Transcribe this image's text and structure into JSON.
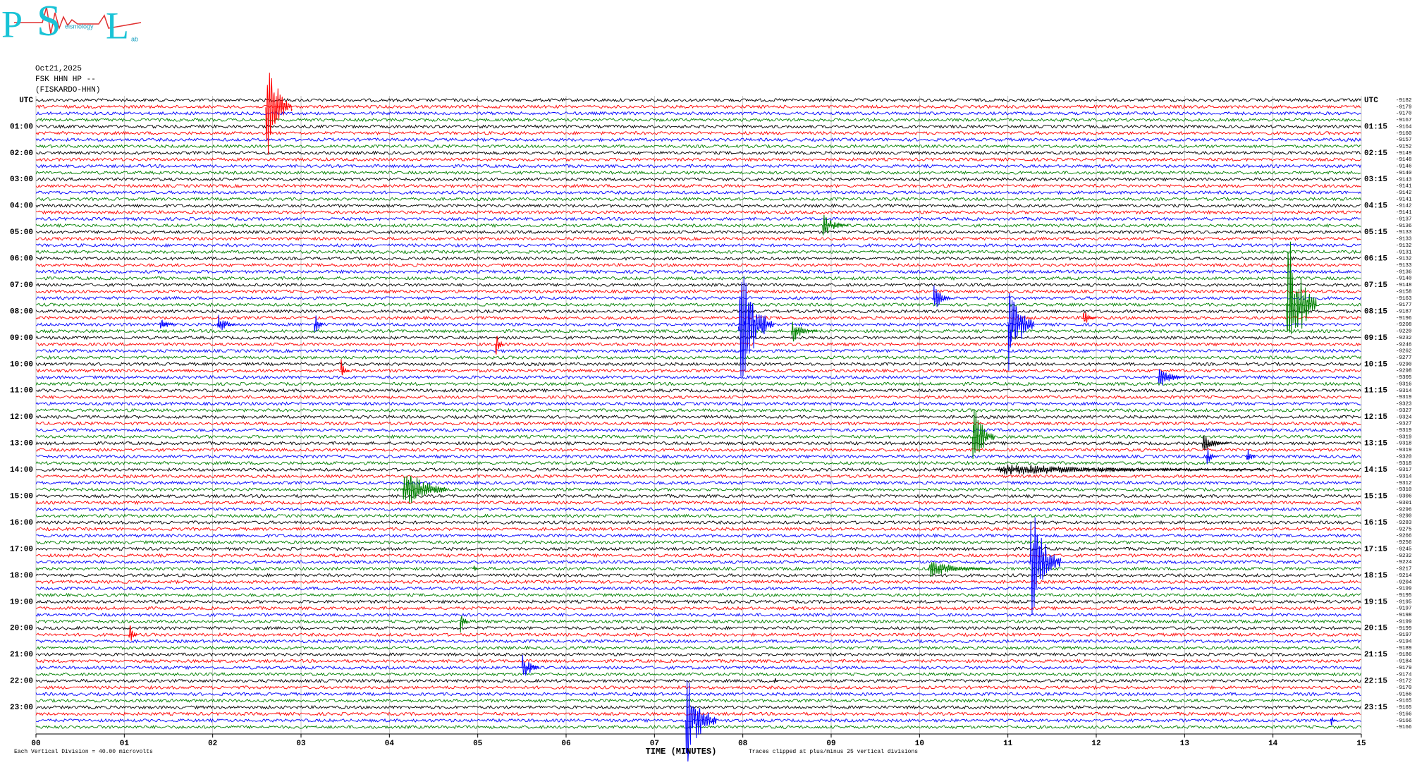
{
  "chart_data": {
    "type": "seismogram",
    "logo_letters": [
      "P",
      "S",
      "L"
    ],
    "logo_small": [
      "eismology",
      "ab"
    ],
    "date": "Oct21,2025",
    "station": "FSK HHN HP --",
    "station_name": "(FISKARDO-HHN)",
    "left_labels": [
      "UTC",
      "01:00",
      "02:00",
      "03:00",
      "04:00",
      "05:00",
      "06:00",
      "07:00",
      "08:00",
      "09:00",
      "10:00",
      "11:00",
      "12:00",
      "13:00",
      "14:00",
      "15:00",
      "16:00",
      "17:00",
      "18:00",
      "19:00",
      "20:00",
      "21:00",
      "22:00",
      "23:00"
    ],
    "right_labels": [
      "UTC",
      "01:15",
      "02:15",
      "03:15",
      "04:15",
      "05:15",
      "06:15",
      "07:15",
      "08:15",
      "09:15",
      "10:15",
      "11:15",
      "12:15",
      "13:15",
      "14:15",
      "15:15",
      "16:15",
      "17:15",
      "18:15",
      "19:15",
      "20:15",
      "21:15",
      "22:15",
      "23:15"
    ],
    "offsets": [
      -9182,
      -9179,
      -9170,
      -9167,
      -9164,
      -9160,
      -9157,
      -9152,
      -9149,
      -9148,
      -9146,
      -9140,
      -9143,
      -9141,
      -9142,
      -9141,
      -9142,
      -9141,
      -9137,
      -9136,
      -9133,
      -9133,
      -9132,
      -9131,
      -9132,
      -9133,
      -9136,
      -9140,
      -9148,
      -9158,
      -9163,
      -9177,
      -9187,
      -9196,
      -9208,
      -9220,
      -9232,
      -9246,
      -9262,
      -9277,
      -9290,
      -9298,
      -9305,
      -9316,
      -9314,
      -9319,
      -9323,
      -9327,
      -9324,
      -9327,
      -9319,
      -9319,
      -9318,
      -9319,
      -9320,
      -9318,
      -9317,
      -9314,
      -9312,
      -9310,
      -9306,
      -9301,
      -9296,
      -9290,
      -9283,
      -9275,
      -9266,
      -9256,
      -9245,
      -9232,
      -9224,
      -9217,
      -9214,
      -9204,
      -9199,
      -9195,
      -9195,
      -9197,
      -9198,
      -9199,
      -9199,
      -9197,
      -9194,
      -9189,
      -9186,
      -9184,
      -9179,
      -9174,
      -9172,
      -9170,
      -9166,
      -9165,
      -9165,
      -9166,
      -9166,
      -9166
    ],
    "colors": [
      "#000000",
      "#ff0000",
      "#0000ff",
      "#008000"
    ],
    "x_label": "TIME (MINUTES)",
    "xlim": [
      0,
      15
    ],
    "xticks": [
      {
        "value": 0,
        "label": "00"
      },
      {
        "value": 1,
        "label": "01"
      },
      {
        "value": 2,
        "label": "02"
      },
      {
        "value": 3,
        "label": "03"
      },
      {
        "value": 4,
        "label": "04"
      },
      {
        "value": 5,
        "label": "05"
      },
      {
        "value": 6,
        "label": "06"
      },
      {
        "value": 7,
        "label": "07"
      },
      {
        "value": 8,
        "label": "08"
      },
      {
        "value": 9,
        "label": "09"
      },
      10,
      11,
      12,
      13,
      14,
      15
    ],
    "grid": true,
    "footer_left": "Each Vertical Division =   40.00 microvolts",
    "footer_right": "Traces clipped at plus/minus 25 vertical divisions",
    "events": [
      {
        "row": 1,
        "minute": 2.6,
        "amp": 10,
        "dur": 0.3
      },
      {
        "row": 59,
        "minute": 4.15,
        "amp": 5,
        "dur": 0.5
      },
      {
        "row": 31,
        "minute": 14.15,
        "amp": 15,
        "dur": 0.35
      },
      {
        "row": 34,
        "minute": 7.95,
        "amp": 12,
        "dur": 0.4
      },
      {
        "row": 34,
        "minute": 11.0,
        "amp": 9,
        "dur": 0.3
      },
      {
        "row": 51,
        "minute": 10.6,
        "amp": 7,
        "dur": 0.25
      },
      {
        "row": 70,
        "minute": 11.25,
        "amp": 11,
        "dur": 0.35
      },
      {
        "row": 94,
        "minute": 7.35,
        "amp": 9,
        "dur": 0.35
      },
      {
        "row": 30,
        "minute": 10.15,
        "amp": 3,
        "dur": 0.2
      },
      {
        "row": 37,
        "minute": 5.2,
        "amp": 2.5,
        "dur": 0.1
      },
      {
        "row": 41,
        "minute": 3.45,
        "amp": 2,
        "dur": 0.1
      },
      {
        "row": 34,
        "minute": 3.15,
        "amp": 3,
        "dur": 0.1
      },
      {
        "row": 19,
        "minute": 8.9,
        "amp": 2,
        "dur": 0.3
      },
      {
        "row": 35,
        "minute": 8.55,
        "amp": 2,
        "dur": 0.3
      },
      {
        "row": 42,
        "minute": 12.7,
        "amp": 2,
        "dur": 0.3
      },
      {
        "row": 52,
        "minute": 13.2,
        "amp": 1.5,
        "dur": 0.3
      },
      {
        "row": 54,
        "minute": 13.25,
        "amp": 2,
        "dur": 0.1
      },
      {
        "row": 54,
        "minute": 13.7,
        "amp": 2,
        "dur": 0.1
      },
      {
        "row": 71,
        "minute": 10.1,
        "amp": 1.5,
        "dur": 0.7
      },
      {
        "row": 86,
        "minute": 5.5,
        "amp": 3,
        "dur": 0.2
      },
      {
        "row": 79,
        "minute": 4.8,
        "amp": 2.5,
        "dur": 0.1
      },
      {
        "row": 81,
        "minute": 1.05,
        "amp": 3,
        "dur": 0.1
      },
      {
        "row": 71,
        "minute": 4.95,
        "amp": 1.5,
        "dur": 0.05
      },
      {
        "row": 34,
        "minute": 2.05,
        "amp": 2,
        "dur": 0.2
      },
      {
        "row": 34,
        "minute": 1.4,
        "amp": 1.2,
        "dur": 0.2
      },
      {
        "row": 88,
        "minute": 8.35,
        "amp": 1.5,
        "dur": 0.05
      },
      {
        "row": 33,
        "minute": 11.85,
        "amp": 1.5,
        "dur": 0.15
      },
      {
        "row": 56,
        "minute": 10.85,
        "amp": 1,
        "dur": 3.05
      },
      {
        "row": 94,
        "minute": 14.65,
        "amp": 1.5,
        "dur": 0.08
      }
    ]
  }
}
